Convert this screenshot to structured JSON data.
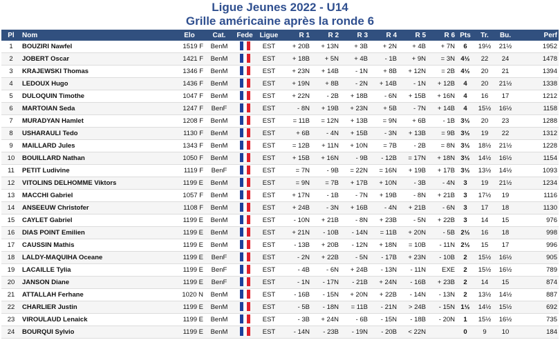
{
  "title": "Ligue Jeunes 2022 - U14",
  "subtitle": "Grille américaine après la ronde 6",
  "columns": [
    "Pl",
    "Nom",
    "Elo",
    "Cat.",
    "Fede",
    "Ligue",
    "R 1",
    "R 2",
    "R 3",
    "R 4",
    "R 5",
    "R 6",
    "Pts",
    "Tr.",
    "Bu.",
    "Perf"
  ],
  "flag_colors": [
    "#1d3f9b",
    "#ffffff",
    "#e0212b"
  ],
  "flag_icon": "france-flag-icon",
  "rows": [
    {
      "pl": "1",
      "nom": "BOUZIRI Nawfel",
      "elo": "1519 F",
      "cat": "BenM",
      "ligue": "EST",
      "r": [
        "+ 20B",
        "+ 13N",
        "+ 3B",
        "+ 2N",
        "+ 4B",
        "+ 7N"
      ],
      "pts": "6",
      "tr": "19½",
      "bu": "21½",
      "perf": "1952"
    },
    {
      "pl": "2",
      "nom": "JOBERT Oscar",
      "elo": "1421 F",
      "cat": "BenM",
      "ligue": "EST",
      "r": [
        "+ 18B",
        "+ 5N",
        "+ 4B",
        "- 1B",
        "+ 9N",
        "= 3N"
      ],
      "pts": "4½",
      "tr": "22",
      "bu": "24",
      "perf": "1478"
    },
    {
      "pl": "3",
      "nom": "KRAJEWSKI Thomas",
      "elo": "1346 F",
      "cat": "BenM",
      "ligue": "EST",
      "r": [
        "+ 23N",
        "+ 14B",
        "- 1N",
        "+ 8B",
        "+ 12N",
        "= 2B"
      ],
      "pts": "4½",
      "tr": "20",
      "bu": "21",
      "perf": "1394"
    },
    {
      "pl": "4",
      "nom": "LEDOUX Hugo",
      "elo": "1436 F",
      "cat": "BenM",
      "ligue": "EST",
      "r": [
        "+ 19N",
        "+ 8B",
        "- 2N",
        "+ 14B",
        "- 1N",
        "+ 12B"
      ],
      "pts": "4",
      "tr": "20",
      "bu": "21½",
      "perf": "1338"
    },
    {
      "pl": "5",
      "nom": "DULOQUIN Timothe",
      "elo": "1047 F",
      "cat": "BenM",
      "ligue": "EST",
      "r": [
        "+ 22N",
        "- 2B",
        "+ 18B",
        "- 6N",
        "+ 15B",
        "+ 16N"
      ],
      "pts": "4",
      "tr": "16",
      "bu": "17",
      "perf": "1212"
    },
    {
      "pl": "6",
      "nom": "MARTOIAN Seda",
      "elo": "1247 F",
      "cat": "BenF",
      "ligue": "EST",
      "r": [
        "- 8N",
        "+ 19B",
        "+ 23N",
        "+ 5B",
        "- 7N",
        "+ 14B"
      ],
      "pts": "4",
      "tr": "15½",
      "bu": "16½",
      "perf": "1158"
    },
    {
      "pl": "7",
      "nom": "MURADYAN Hamlet",
      "elo": "1208 F",
      "cat": "BenM",
      "ligue": "EST",
      "r": [
        "= 11B",
        "= 12N",
        "+ 13B",
        "= 9N",
        "+ 6B",
        "- 1B"
      ],
      "pts": "3½",
      "tr": "20",
      "bu": "23",
      "perf": "1288"
    },
    {
      "pl": "8",
      "nom": "USHARAULI Tedo",
      "elo": "1130 F",
      "cat": "BenM",
      "ligue": "EST",
      "r": [
        "+ 6B",
        "- 4N",
        "+ 15B",
        "- 3N",
        "+ 13B",
        "= 9B"
      ],
      "pts": "3½",
      "tr": "19",
      "bu": "22",
      "perf": "1312"
    },
    {
      "pl": "9",
      "nom": "MAILLARD Jules",
      "elo": "1343 F",
      "cat": "BenM",
      "ligue": "EST",
      "r": [
        "= 12B",
        "+ 11N",
        "+ 10N",
        "= 7B",
        "- 2B",
        "= 8N"
      ],
      "pts": "3½",
      "tr": "18½",
      "bu": "21½",
      "perf": "1228"
    },
    {
      "pl": "10",
      "nom": "BOUILLARD Nathan",
      "elo": "1050 F",
      "cat": "BenM",
      "ligue": "EST",
      "r": [
        "+ 15B",
        "+ 16N",
        "- 9B",
        "- 12B",
        "= 17N",
        "+ 18N"
      ],
      "pts": "3½",
      "tr": "14½",
      "bu": "16½",
      "perf": "1154"
    },
    {
      "pl": "11",
      "nom": "PETIT Ludivine",
      "elo": "1119 F",
      "cat": "BenF",
      "ligue": "EST",
      "r": [
        "= 7N",
        "- 9B",
        "= 22N",
        "= 16N",
        "+ 19B",
        "+ 17B"
      ],
      "pts": "3½",
      "tr": "13½",
      "bu": "14½",
      "perf": "1093"
    },
    {
      "pl": "12",
      "nom": "VITOLINS DELHOMME Viktors",
      "elo": "1199 E",
      "cat": "BenM",
      "ligue": "EST",
      "r": [
        "= 9N",
        "= 7B",
        "+ 17B",
        "+ 10N",
        "- 3B",
        "- 4N"
      ],
      "pts": "3",
      "tr": "19",
      "bu": "21½",
      "perf": "1234"
    },
    {
      "pl": "13",
      "nom": "MACCHI Gabriel",
      "elo": "1057 F",
      "cat": "BenM",
      "ligue": "EST",
      "r": [
        "+ 17N",
        "- 1B",
        "- 7N",
        "+ 19B",
        "- 8N",
        "+ 21B"
      ],
      "pts": "3",
      "tr": "17½",
      "bu": "19",
      "perf": "1116"
    },
    {
      "pl": "14",
      "nom": "ANSEEUW Christofer",
      "elo": "1108 F",
      "cat": "BenM",
      "ligue": "EST",
      "r": [
        "+ 24B",
        "- 3N",
        "+ 16B",
        "- 4N",
        "+ 21B",
        "- 6N"
      ],
      "pts": "3",
      "tr": "17",
      "bu": "18",
      "perf": "1130"
    },
    {
      "pl": "15",
      "nom": "CAYLET Gabriel",
      "elo": "1199 E",
      "cat": "BenM",
      "ligue": "EST",
      "r": [
        "- 10N",
        "+ 21B",
        "- 8N",
        "+ 23B",
        "- 5N",
        "+ 22B"
      ],
      "pts": "3",
      "tr": "14",
      "bu": "15",
      "perf": "976"
    },
    {
      "pl": "16",
      "nom": "DIAS POINT Emilien",
      "elo": "1199 E",
      "cat": "BenM",
      "ligue": "EST",
      "r": [
        "+ 21N",
        "- 10B",
        "- 14N",
        "= 11B",
        "+ 20N",
        "- 5B"
      ],
      "pts": "2½",
      "tr": "16",
      "bu": "18",
      "perf": "998"
    },
    {
      "pl": "17",
      "nom": "CAUSSIN Mathis",
      "elo": "1199 E",
      "cat": "BenM",
      "ligue": "EST",
      "r": [
        "- 13B",
        "+ 20B",
        "- 12N",
        "+ 18N",
        "= 10B",
        "- 11N"
      ],
      "pts": "2½",
      "tr": "15",
      "bu": "17",
      "perf": "996"
    },
    {
      "pl": "18",
      "nom": "LALDY-MAQUIHA Oceane",
      "elo": "1199 E",
      "cat": "BenF",
      "ligue": "EST",
      "r": [
        "- 2N",
        "+ 22B",
        "- 5N",
        "- 17B",
        "+ 23N",
        "- 10B"
      ],
      "pts": "2",
      "tr": "15½",
      "bu": "16½",
      "perf": "905"
    },
    {
      "pl": "19",
      "nom": "LACAILLE Tylia",
      "elo": "1199 E",
      "cat": "BenF",
      "ligue": "EST",
      "r": [
        "- 4B",
        "- 6N",
        "+ 24B",
        "- 13N",
        "- 11N",
        "EXE"
      ],
      "pts": "2",
      "tr": "15½",
      "bu": "16½",
      "perf": "789"
    },
    {
      "pl": "20",
      "nom": "JANSON Diane",
      "elo": "1199 E",
      "cat": "BenF",
      "ligue": "EST",
      "r": [
        "- 1N",
        "- 17N",
        "- 21B",
        "+ 24N",
        "- 16B",
        "+ 23B"
      ],
      "pts": "2",
      "tr": "14",
      "bu": "15",
      "perf": "874"
    },
    {
      "pl": "21",
      "nom": "ATTALLAH Ferhane",
      "elo": "1020 N",
      "cat": "BenM",
      "ligue": "EST",
      "r": [
        "- 16B",
        "- 15N",
        "+ 20N",
        "+ 22B",
        "- 14N",
        "- 13N"
      ],
      "pts": "2",
      "tr": "13½",
      "bu": "14½",
      "perf": "887"
    },
    {
      "pl": "22",
      "nom": "CHARLIER Justin",
      "elo": "1199 E",
      "cat": "BenM",
      "ligue": "EST",
      "r": [
        "- 5B",
        "- 18N",
        "= 11B",
        "- 21N",
        "> 24B",
        "- 15N"
      ],
      "pts": "1½",
      "tr": "14½",
      "bu": "15½",
      "perf": "692"
    },
    {
      "pl": "23",
      "nom": "VIROULAUD Lenaick",
      "elo": "1199 E",
      "cat": "BenM",
      "ligue": "EST",
      "r": [
        "- 3B",
        "+ 24N",
        "- 6B",
        "- 15N",
        "- 18B",
        "- 20N"
      ],
      "pts": "1",
      "tr": "15½",
      "bu": "16½",
      "perf": "735"
    },
    {
      "pl": "24",
      "nom": "BOURQUI Sylvio",
      "elo": "1199 E",
      "cat": "BenM",
      "ligue": "EST",
      "r": [
        "- 14N",
        "- 23B",
        "- 19N",
        "- 20B",
        "< 22N",
        ""
      ],
      "pts": "0",
      "tr": "9",
      "bu": "10",
      "perf": "184"
    }
  ]
}
